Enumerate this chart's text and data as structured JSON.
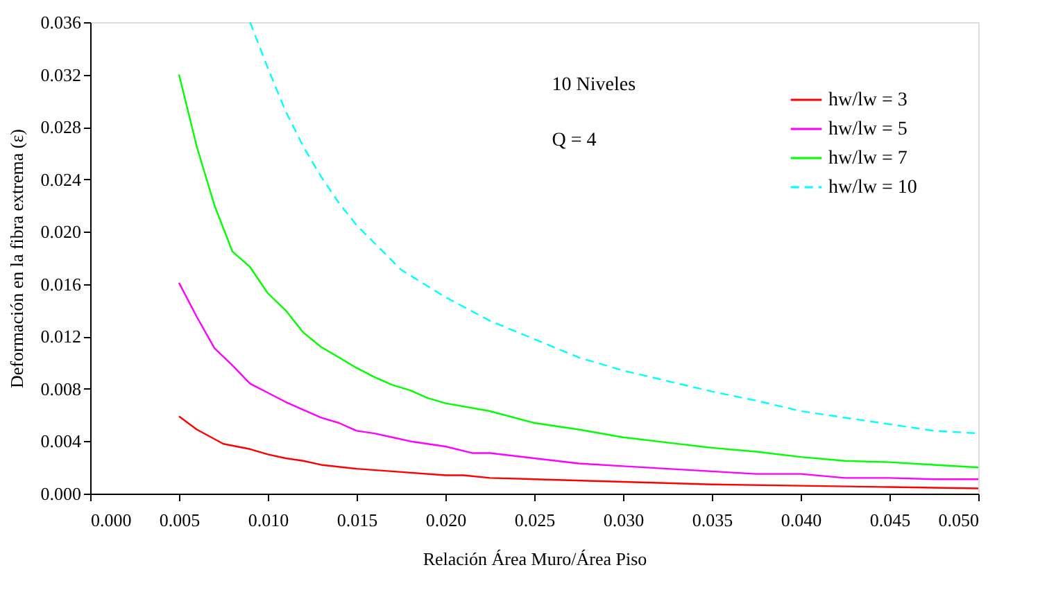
{
  "chart_data": {
    "type": "line",
    "xlabel": "Relación Área Muro/Área Piso",
    "ylabel": "Deformación en la fibra extrema (ε)",
    "annotations": [
      "10 Niveles",
      "Q = 4"
    ],
    "xlim": [
      0,
      0.05
    ],
    "xticks": [
      {
        "value": 0,
        "label": "0.000"
      },
      {
        "value": 0.005,
        "label": "0.005"
      },
      {
        "value": 0.01,
        "label": "0.010"
      },
      {
        "value": 0.015,
        "label": "0.015"
      },
      {
        "value": 0.02,
        "label": "0.020"
      },
      {
        "value": 0.025,
        "label": "0.025"
      },
      {
        "value": 0.03,
        "label": "0.030"
      },
      {
        "value": 0.035,
        "label": "0.035"
      },
      {
        "value": 0.04,
        "label": "0.040"
      },
      {
        "value": 0.045,
        "label": "0.045"
      },
      {
        "value": 0.05,
        "label": "0.050"
      }
    ],
    "ylim": [
      0,
      0.036
    ],
    "yticks": [
      {
        "value": 0,
        "label": "0.000"
      },
      0.004,
      0.008,
      0.012,
      0.016,
      {
        "value": 0.02,
        "label": "0.020"
      },
      0.024,
      0.028,
      0.032,
      0.036
    ],
    "grid": false,
    "legend": "top right",
    "marker": "none",
    "series": [
      {
        "name": "hw/lw = 3",
        "color": "#ff0000",
        "line_style": "solid",
        "x": [
          0.005,
          0.006,
          0.0075,
          0.009,
          0.01,
          0.011,
          0.012,
          0.013,
          0.015,
          0.017,
          0.02,
          0.021,
          0.0225,
          0.025,
          0.03,
          0.035,
          0.04,
          0.045,
          0.05
        ],
        "values": [
          0.0059,
          0.0049,
          0.0038,
          0.0034,
          0.003,
          0.0027,
          0.0025,
          0.0022,
          0.0019,
          0.0017,
          0.0014,
          0.0014,
          0.0012,
          0.0011,
          0.0009,
          0.0007,
          0.0006,
          0.0005,
          0.0004
        ]
      },
      {
        "name": "hw/lw = 5",
        "color": "#ff00ff",
        "line_style": "solid",
        "x": [
          0.005,
          0.006,
          0.007,
          0.008,
          0.009,
          0.01,
          0.011,
          0.012,
          0.013,
          0.014,
          0.015,
          0.016,
          0.017,
          0.018,
          0.019,
          0.02,
          0.0215,
          0.0225,
          0.025,
          0.0275,
          0.03,
          0.0325,
          0.035,
          0.0375,
          0.04,
          0.0425,
          0.045,
          0.0475,
          0.05
        ],
        "values": [
          0.0161,
          0.0135,
          0.0111,
          0.0098,
          0.0084,
          0.0077,
          0.007,
          0.0064,
          0.0058,
          0.0054,
          0.0048,
          0.0046,
          0.0043,
          0.004,
          0.0038,
          0.0036,
          0.0031,
          0.0031,
          0.0027,
          0.0023,
          0.0021,
          0.0019,
          0.0017,
          0.0015,
          0.0015,
          0.0012,
          0.0012,
          0.0011,
          0.0011
        ]
      },
      {
        "name": "hw/lw = 7",
        "color": "#00ff00",
        "line_style": "solid",
        "x": [
          0.005,
          0.006,
          0.007,
          0.008,
          0.009,
          0.01,
          0.011,
          0.012,
          0.013,
          0.014,
          0.015,
          0.016,
          0.017,
          0.018,
          0.019,
          0.02,
          0.0225,
          0.025,
          0.0275,
          0.03,
          0.0325,
          0.035,
          0.0375,
          0.04,
          0.0425,
          0.045,
          0.0475,
          0.05
        ],
        "values": [
          0.032,
          0.0265,
          0.022,
          0.0185,
          0.0173,
          0.0153,
          0.014,
          0.0123,
          0.0112,
          0.0104,
          0.0096,
          0.0089,
          0.0083,
          0.0079,
          0.0073,
          0.0069,
          0.0063,
          0.0054,
          0.0049,
          0.0043,
          0.0039,
          0.0035,
          0.0032,
          0.0028,
          0.0025,
          0.0024,
          0.0022,
          0.002
        ]
      },
      {
        "name": "hw/lw = 10",
        "color": "#00ffff",
        "line_style": "dashed",
        "x": [
          0.009,
          0.01,
          0.011,
          0.012,
          0.013,
          0.014,
          0.015,
          0.0175,
          0.02,
          0.0225,
          0.025,
          0.0275,
          0.03,
          0.0325,
          0.035,
          0.0375,
          0.04,
          0.0425,
          0.045,
          0.0475,
          0.05
        ],
        "values": [
          0.036,
          0.0325,
          0.0292,
          0.0265,
          0.0242,
          0.0222,
          0.0205,
          0.0171,
          0.015,
          0.0132,
          0.0118,
          0.0104,
          0.0094,
          0.0086,
          0.0078,
          0.0071,
          0.0063,
          0.0058,
          0.0053,
          0.0048,
          0.0046
        ]
      }
    ]
  }
}
